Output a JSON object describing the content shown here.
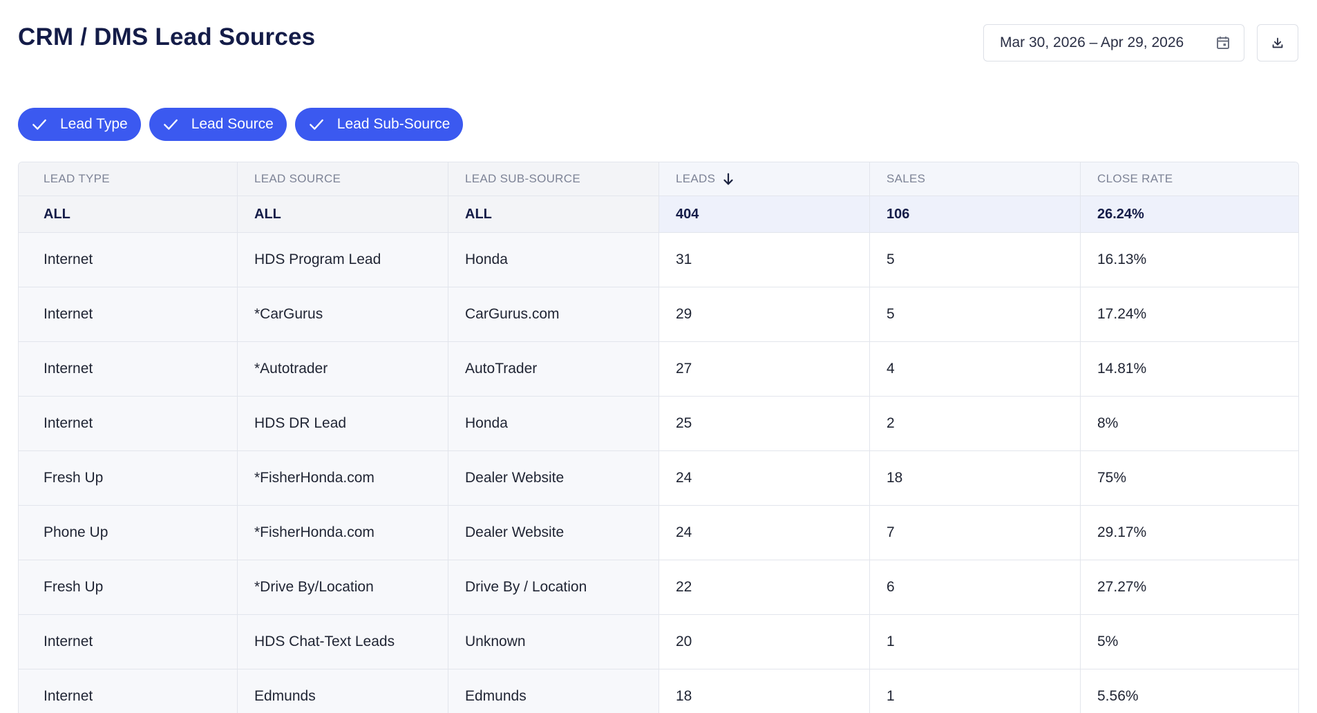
{
  "page": {
    "title": "CRM / DMS Lead Sources"
  },
  "date_range": {
    "value": "Mar 30, 2026 – Apr 29, 2026"
  },
  "icons": {
    "calendar": "calendar-icon",
    "download": "download-icon",
    "check": "check-icon",
    "sort": "arrow-down-icon"
  },
  "colors": {
    "accent": "#3b59f0",
    "title": "#141c48"
  },
  "filters": [
    {
      "label": "Lead Type",
      "selected": true
    },
    {
      "label": "Lead Source",
      "selected": true
    },
    {
      "label": "Lead Sub-Source",
      "selected": true
    }
  ],
  "table": {
    "headers": [
      "LEAD TYPE",
      "LEAD SOURCE",
      "LEAD SUB-SOURCE",
      "LEADS",
      "SALES",
      "CLOSE RATE"
    ],
    "sorted_column": "LEADS",
    "sort_direction": "descending",
    "totals": [
      "ALL",
      "ALL",
      "ALL",
      "404",
      "106",
      "26.24%"
    ],
    "rows": [
      [
        "Internet",
        "HDS Program Lead",
        "Honda",
        "31",
        "5",
        "16.13%"
      ],
      [
        "Internet",
        "*CarGurus",
        "CarGurus.com",
        "29",
        "5",
        "17.24%"
      ],
      [
        "Internet",
        "*Autotrader",
        "AutoTrader",
        "27",
        "4",
        "14.81%"
      ],
      [
        "Internet",
        "HDS DR Lead",
        "Honda",
        "25",
        "2",
        "8%"
      ],
      [
        "Fresh Up",
        "*FisherHonda.com",
        "Dealer Website",
        "24",
        "18",
        "75%"
      ],
      [
        "Phone Up",
        "*FisherHonda.com",
        "Dealer Website",
        "24",
        "7",
        "29.17%"
      ],
      [
        "Fresh Up",
        "*Drive By/Location",
        "Drive By / Location",
        "22",
        "6",
        "27.27%"
      ],
      [
        "Internet",
        "HDS Chat-Text Leads",
        "Unknown",
        "20",
        "1",
        "5%"
      ],
      [
        "Internet",
        "Edmunds",
        "Edmunds",
        "18",
        "1",
        "5.56%"
      ]
    ]
  }
}
